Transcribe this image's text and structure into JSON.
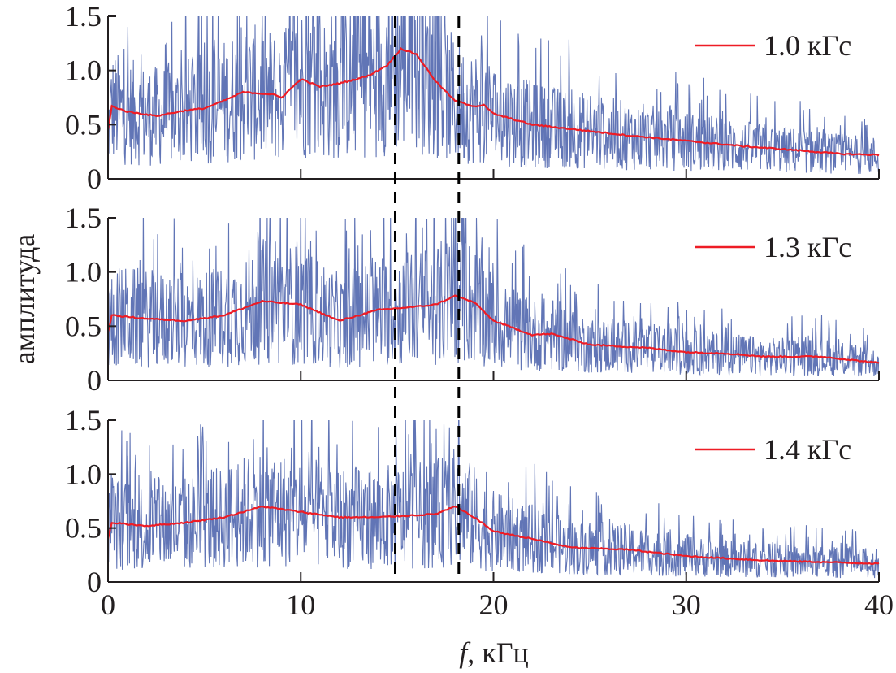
{
  "chart_data": [
    {
      "type": "line",
      "legend": "1.0 кГс",
      "legend_position": "top-right",
      "xlim": [
        0,
        40
      ],
      "ylim": [
        0,
        1.5
      ],
      "yticks": [
        "0",
        "0.5",
        "1.0",
        "1.5"
      ],
      "smoothed": {
        "x": [
          0,
          0.2,
          1,
          2.5,
          4,
          5,
          6,
          7,
          8.5,
          9,
          10,
          11,
          12,
          13.5,
          14.5,
          15.2,
          16,
          17,
          18,
          19,
          19.5,
          20,
          22,
          25,
          27,
          30,
          33,
          36,
          38,
          40
        ],
        "y": [
          0.45,
          0.67,
          0.62,
          0.58,
          0.63,
          0.65,
          0.72,
          0.8,
          0.78,
          0.75,
          0.92,
          0.85,
          0.88,
          0.95,
          1.05,
          1.2,
          1.15,
          0.9,
          0.72,
          0.67,
          0.68,
          0.6,
          0.5,
          0.44,
          0.4,
          0.35,
          0.3,
          0.26,
          0.23,
          0.22
        ]
      }
    },
    {
      "type": "line",
      "legend": "1.3 кГс",
      "legend_position": "top-right",
      "xlim": [
        0,
        40
      ],
      "ylim": [
        0,
        1.5
      ],
      "yticks": [
        "0",
        "0.5",
        "1.0",
        "1.5"
      ],
      "smoothed": {
        "x": [
          0,
          0.2,
          2,
          4,
          6,
          8,
          10,
          12,
          14,
          16,
          17,
          18,
          19,
          20,
          22,
          23,
          25,
          28,
          30,
          32,
          34,
          37,
          40
        ],
        "y": [
          0.45,
          0.6,
          0.57,
          0.55,
          0.6,
          0.73,
          0.7,
          0.55,
          0.65,
          0.68,
          0.7,
          0.78,
          0.72,
          0.55,
          0.42,
          0.43,
          0.33,
          0.3,
          0.26,
          0.25,
          0.22,
          0.22,
          0.16
        ]
      }
    },
    {
      "type": "line",
      "legend": "1.4 кГс",
      "legend_position": "top-right",
      "xlim": [
        0,
        40
      ],
      "ylim": [
        0,
        1.5
      ],
      "yticks": [
        "0",
        "0.5",
        "1.0",
        "1.5"
      ],
      "xticks": [
        "0",
        "10",
        "20",
        "30",
        "40"
      ],
      "smoothed": {
        "x": [
          0,
          0.2,
          2,
          4,
          6,
          8,
          10,
          12,
          14,
          16,
          17,
          18,
          19,
          20,
          22,
          24,
          27,
          30,
          34,
          40
        ],
        "y": [
          0.4,
          0.55,
          0.52,
          0.55,
          0.6,
          0.7,
          0.65,
          0.6,
          0.6,
          0.62,
          0.63,
          0.7,
          0.6,
          0.47,
          0.4,
          0.32,
          0.3,
          0.24,
          0.2,
          0.17
        ]
      }
    }
  ],
  "reference_lines_x": [
    14.9,
    18.2
  ],
  "xlabel_italic": "f",
  "xlabel_rest": ", кГц",
  "ylabel": "амплитуда",
  "colors": {
    "raw": "#3a52a4",
    "smoothed": "#ee1c25",
    "axis": "#231f20"
  }
}
